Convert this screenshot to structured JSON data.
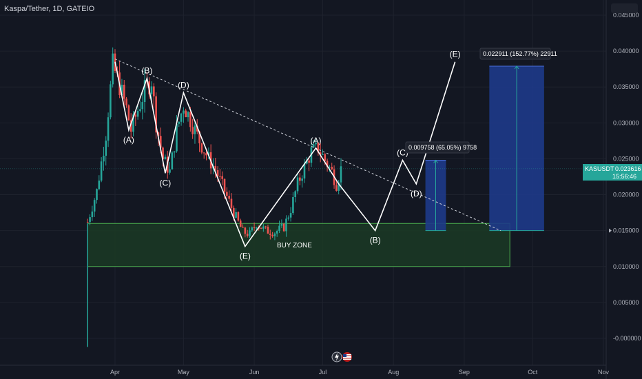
{
  "header": {
    "symbol_title": "Kaspa/Tether, 1D, GATEIO"
  },
  "colors": {
    "background": "#131722",
    "up": "#26a69a",
    "down": "#ef5350",
    "wave_line": "#ffffff",
    "buy_zone_fill": "#1b3a24",
    "buy_zone_border": "#4caf50",
    "target_box": "#1e3a8a",
    "price_badge": "#26a69a"
  },
  "price_badge": {
    "symbol": "KASUSDT",
    "price": "0.023616",
    "countdown": "15:56:46"
  },
  "annotations": {
    "buy_zone_label": "BUY ZONE",
    "target1_label": "0.009758 (65.05%) 9758",
    "target2_label": "0.022911 (152.77%) 22911"
  },
  "toolbar_icons": [
    "lightning-icon",
    "flag-icon"
  ],
  "chart_data": {
    "type": "candlestick",
    "title": "Kaspa/Tether, 1D, GATEIO",
    "y_ticks": [
      "0.045000",
      "0.040000",
      "0.035000",
      "0.030000",
      "0.025000",
      "0.020000",
      "0.015000",
      "0.010000",
      "0.005000",
      "0.000000"
    ],
    "x_ticks": [
      {
        "label": "Apr",
        "date": "2023-04-01"
      },
      {
        "label": "May",
        "date": "2023-05-01"
      },
      {
        "label": "Jun",
        "date": "2023-06-01"
      },
      {
        "label": "Jul",
        "date": "2023-07-01"
      },
      {
        "label": "Aug",
        "date": "2023-08-01"
      },
      {
        "label": "Sep",
        "date": "2023-09-01"
      },
      {
        "label": "Oct",
        "date": "2023-10-01"
      },
      {
        "label": "Nov",
        "date": "2023-11-01"
      }
    ],
    "ylim": [
      -0.002,
      0.0455
    ],
    "xlim": [
      "2023-03-13",
      "2023-11-01"
    ],
    "close_series": [
      {
        "date": "2023-03-20",
        "close": 0.0162
      },
      {
        "date": "2023-03-24",
        "close": 0.0205
      },
      {
        "date": "2023-03-28",
        "close": 0.0285
      },
      {
        "date": "2023-03-31",
        "close": 0.038
      },
      {
        "date": "2023-04-03",
        "close": 0.0352
      },
      {
        "date": "2023-04-06",
        "close": 0.032
      },
      {
        "date": "2023-04-08",
        "close": 0.029
      },
      {
        "date": "2023-04-11",
        "close": 0.0318
      },
      {
        "date": "2023-04-14",
        "close": 0.0345
      },
      {
        "date": "2023-04-17",
        "close": 0.036
      },
      {
        "date": "2023-04-19",
        "close": 0.03
      },
      {
        "date": "2023-04-22",
        "close": 0.025
      },
      {
        "date": "2023-04-25",
        "close": 0.0232
      },
      {
        "date": "2023-04-28",
        "close": 0.029
      },
      {
        "date": "2023-05-01",
        "close": 0.0325
      },
      {
        "date": "2023-05-04",
        "close": 0.0305
      },
      {
        "date": "2023-05-08",
        "close": 0.0275
      },
      {
        "date": "2023-05-12",
        "close": 0.025
      },
      {
        "date": "2023-05-15",
        "close": 0.0235
      },
      {
        "date": "2023-05-19",
        "close": 0.0205
      },
      {
        "date": "2023-05-23",
        "close": 0.0175
      },
      {
        "date": "2023-05-27",
        "close": 0.0148
      },
      {
        "date": "2023-05-30",
        "close": 0.0145
      },
      {
        "date": "2023-06-02",
        "close": 0.016
      },
      {
        "date": "2023-06-06",
        "close": 0.015
      },
      {
        "date": "2023-06-10",
        "close": 0.0148
      },
      {
        "date": "2023-06-14",
        "close": 0.0155
      },
      {
        "date": "2023-06-17",
        "close": 0.018
      },
      {
        "date": "2023-06-20",
        "close": 0.0215
      },
      {
        "date": "2023-06-23",
        "close": 0.0238
      },
      {
        "date": "2023-06-26",
        "close": 0.026
      },
      {
        "date": "2023-06-29",
        "close": 0.0265
      },
      {
        "date": "2023-07-02",
        "close": 0.0248
      },
      {
        "date": "2023-07-05",
        "close": 0.0232
      },
      {
        "date": "2023-07-07",
        "close": 0.0215
      },
      {
        "date": "2023-07-09",
        "close": 0.0236
      }
    ],
    "wave_path": [
      {
        "date": "2023-04-01",
        "value": 0.0385,
        "label": ""
      },
      {
        "date": "2023-04-07",
        "value": 0.029,
        "label": "(A)"
      },
      {
        "date": "2023-04-15",
        "value": 0.0362,
        "label": "(B)"
      },
      {
        "date": "2023-04-23",
        "value": 0.023,
        "label": "(C)"
      },
      {
        "date": "2023-05-01",
        "value": 0.0342,
        "label": "(D)"
      },
      {
        "date": "2023-05-28",
        "value": 0.0128,
        "label": "(E)"
      },
      {
        "date": "2023-06-28",
        "value": 0.0265,
        "label": "(A)"
      },
      {
        "date": "2023-07-08",
        "value": 0.0215,
        "label": ""
      },
      {
        "date": "2023-07-24",
        "value": 0.015,
        "label": "(B)"
      },
      {
        "date": "2023-08-05",
        "value": 0.0248,
        "label": "(C)"
      },
      {
        "date": "2023-08-11",
        "value": 0.0215,
        "label": "(D)"
      },
      {
        "date": "2023-08-28",
        "value": 0.0385,
        "label": "(E)"
      }
    ],
    "trendline": [
      {
        "date": "2023-04-01",
        "value": 0.0389
      },
      {
        "date": "2023-09-17",
        "value": 0.015
      }
    ],
    "buy_zone": {
      "x_start": "2023-03-20",
      "x_end": "2023-09-21",
      "y_low": 0.01,
      "y_high": 0.016
    },
    "targets": [
      {
        "x_start": "2023-08-15",
        "x_end": "2023-08-24",
        "y_low": 0.015,
        "y_high": 0.0248
      },
      {
        "x_start": "2023-09-12",
        "x_end": "2023-10-06",
        "y_low": 0.015,
        "y_high": 0.0379
      }
    ],
    "current_price": 0.023616
  }
}
